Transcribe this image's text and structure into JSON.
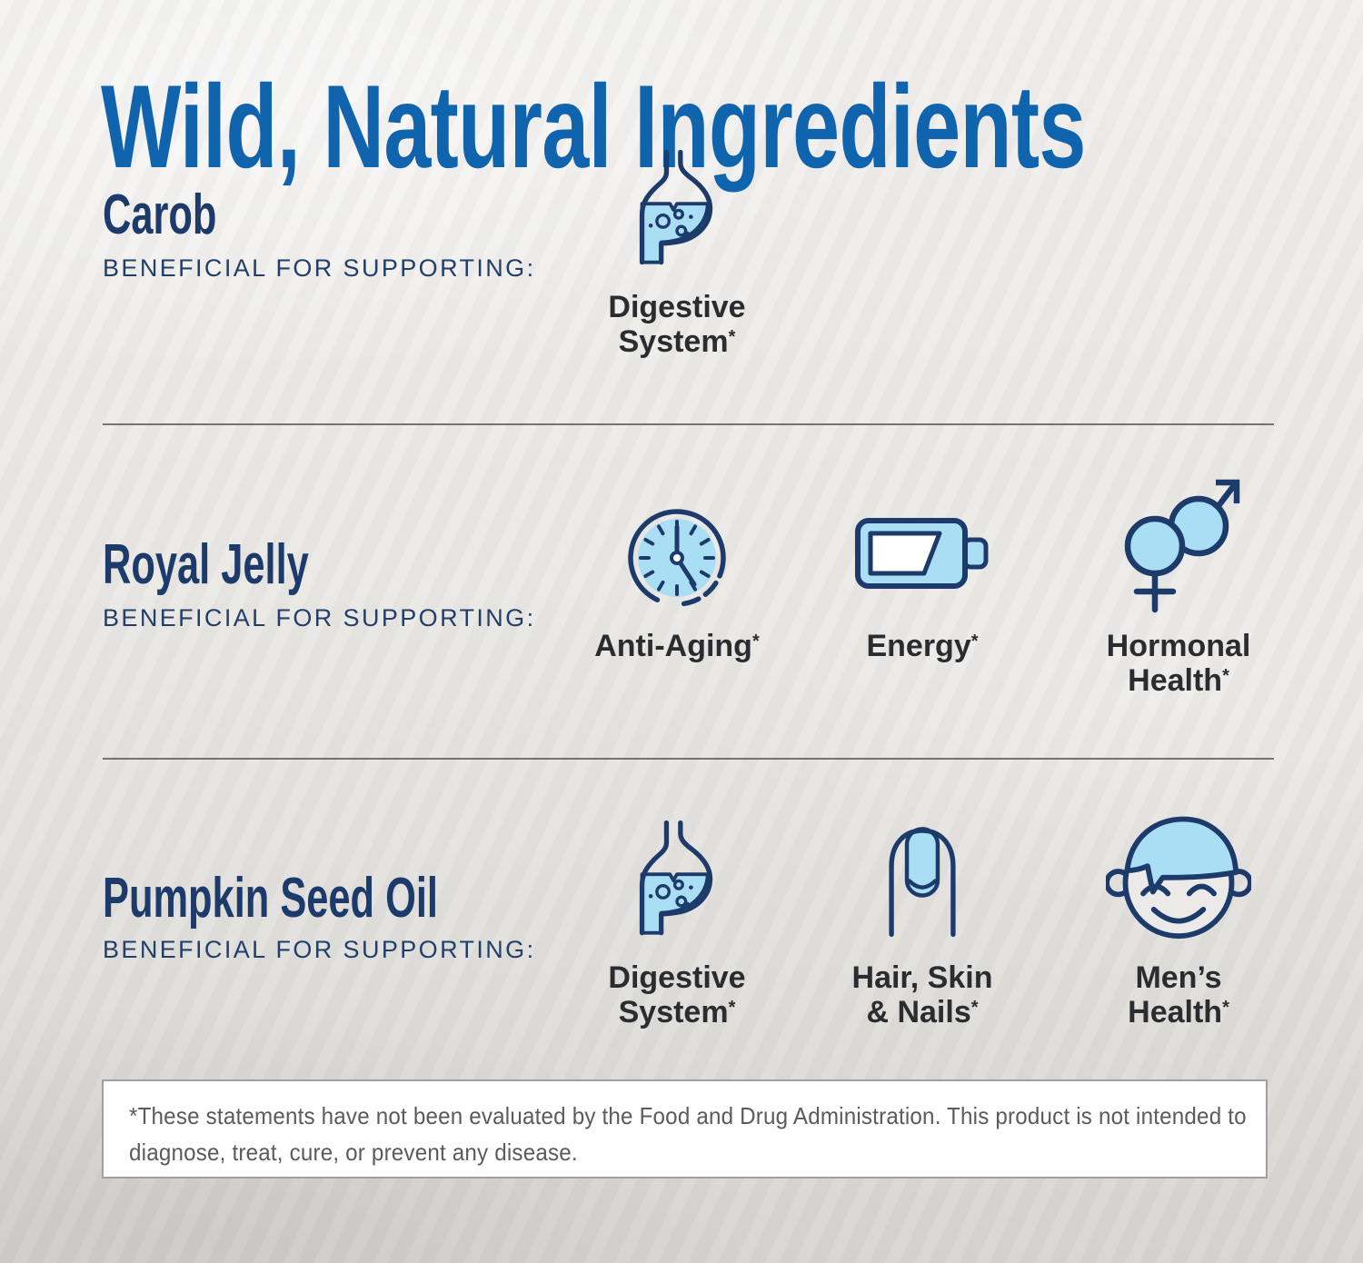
{
  "page": {
    "title": "Wild, Natural Ingredients"
  },
  "colors": {
    "title_blue": "#1063ad",
    "heading_navy": "#1d3b6a",
    "icon_stroke_navy": "#1d3b6a",
    "icon_fill_light_blue": "#aadef5",
    "label_dark": "#2a2c30",
    "divider_gray": "#5f5f5f",
    "disclaimer_gray": "#5b5b5b",
    "background_gray": "#e8e6e3"
  },
  "sections": [
    {
      "name": "Carob",
      "tagline": "BENEFICIAL FOR SUPPORTING:",
      "benefits": [
        {
          "icon": "stomach-icon",
          "lines": [
            "Digestive",
            "System*"
          ]
        }
      ]
    },
    {
      "name": "Royal Jelly",
      "tagline": "BENEFICIAL FOR SUPPORTING:",
      "benefits": [
        {
          "icon": "clock-icon",
          "lines": [
            "Anti-Aging*"
          ]
        },
        {
          "icon": "battery-icon",
          "lines": [
            "Energy*"
          ]
        },
        {
          "icon": "gender-icon",
          "lines": [
            "Hormonal",
            "Health*"
          ]
        }
      ]
    },
    {
      "name": "Pumpkin Seed Oil",
      "tagline": "BENEFICIAL FOR SUPPORTING:",
      "benefits": [
        {
          "icon": "stomach-icon",
          "lines": [
            "Digestive",
            "System*"
          ]
        },
        {
          "icon": "fingernail-icon",
          "lines": [
            "Hair, Skin",
            "& Nails*"
          ]
        },
        {
          "icon": "face-icon",
          "lines": [
            "Men’s",
            "Health*"
          ]
        }
      ]
    }
  ],
  "disclaimer": {
    "text": "*These statements have not been evaluated by the Food and Drug Administration. This product is not intended to diagnose, treat, cure, or prevent any disease."
  }
}
